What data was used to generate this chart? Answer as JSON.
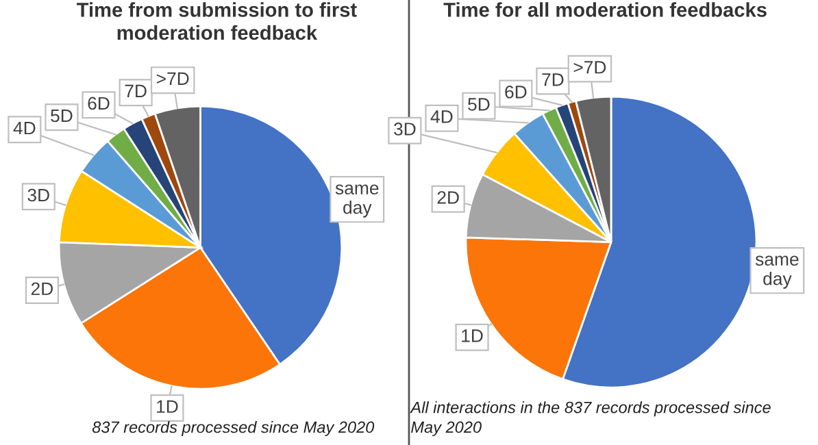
{
  "chart_data": [
    {
      "type": "pie",
      "title": "Time from submission to first\nmoderation feedback",
      "categories": [
        "same day",
        "1D",
        "2D",
        "3D",
        "4D",
        "5D",
        "6D",
        "7D",
        ">7D"
      ],
      "values": [
        40.5,
        25.5,
        9.6,
        8.5,
        4.5,
        2.3,
        2.3,
        1.6,
        5.2
      ],
      "colors": [
        "#4472c4",
        "#fb7508",
        "#a5a5a5",
        "#ffc000",
        "#5b9bd5",
        "#70ad47",
        "#264478",
        "#9e480e",
        "#636363"
      ],
      "annotations": [
        "837 records processed since May 2020"
      ]
    },
    {
      "type": "pie",
      "title": "Time for all moderation feedbacks",
      "categories": [
        "same day",
        "1D",
        "2D",
        "3D",
        "4D",
        "5D",
        "6D",
        "7D",
        ">7D"
      ],
      "values": [
        55.4,
        20.1,
        7.2,
        5.7,
        3.8,
        1.6,
        1.4,
        0.9,
        3.9
      ],
      "colors": [
        "#4472c4",
        "#fb7508",
        "#a5a5a5",
        "#ffc000",
        "#5b9bd5",
        "#70ad47",
        "#264478",
        "#9e480e",
        "#636363"
      ],
      "annotations": [
        "All interactions in the 837 records processed since\nMay 2020"
      ]
    }
  ]
}
